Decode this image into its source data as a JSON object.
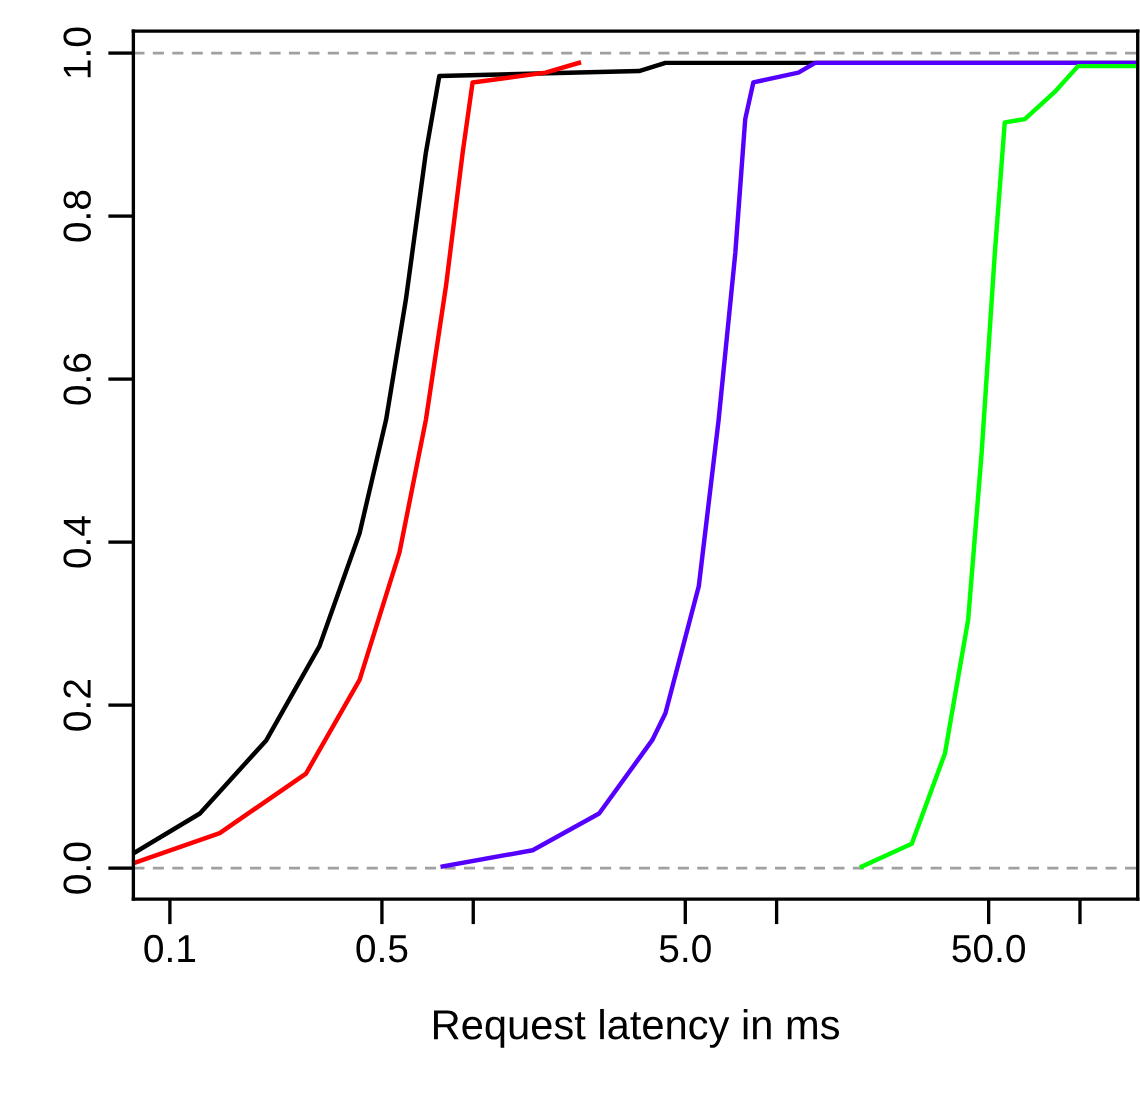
{
  "chart_data": {
    "type": "line",
    "xlabel": "Request latency in ms",
    "log": "x",
    "xlim": [
      0.0758,
      155
    ],
    "xticks": [
      0.1,
      0.5,
      {
        "value": 1,
        "label": null
      },
      {
        "value": 5,
        "label": "5.0"
      },
      {
        "value": 10,
        "label": null
      },
      {
        "value": 50,
        "label": "50.0"
      },
      {
        "value": 100,
        "label": null
      }
    ],
    "ylim": [
      -0.038,
      1.027
    ],
    "yticks": [
      {
        "value": 0,
        "label": "0.0"
      },
      0.2,
      0.4,
      0.6,
      0.8,
      {
        "value": 1,
        "label": "1.0"
      }
    ],
    "grid": false,
    "legend": false,
    "ref_lines": [
      {
        "axis": "y",
        "value": 0,
        "color": "#a0a0a0",
        "line_style": "dashed"
      },
      {
        "axis": "y",
        "value": 1,
        "color": "#a0a0a0",
        "line_style": "dashed"
      }
    ],
    "series": [
      {
        "color": "#000000",
        "x": [
          0.0758,
          0.1256,
          0.208,
          0.311,
          0.422,
          0.516,
          0.6,
          0.698,
          0.773,
          3.52,
          4.3,
          155
        ],
        "values": [
          0.018,
          0.067,
          0.157,
          0.272,
          0.411,
          0.55,
          0.698,
          0.878,
          0.972,
          0.978,
          0.988,
          0.988
        ]
      },
      {
        "color": "#ff0000",
        "x": [
          0.0758,
          0.146,
          0.281,
          0.422,
          0.571,
          0.698,
          0.813,
          0.923,
          0.995,
          1.73,
          2.23
        ],
        "values": [
          0.006,
          0.043,
          0.116,
          0.231,
          0.387,
          0.55,
          0.714,
          0.878,
          0.964,
          0.976,
          0.988
        ]
      },
      {
        "color": "#5500ff",
        "x": [
          0.793,
          1.57,
          2.6,
          3.89,
          4.3,
          5.54,
          6.44,
          7.31,
          7.88,
          8.38,
          11.8,
          13.4,
          155
        ],
        "values": [
          0.002,
          0.022,
          0.067,
          0.157,
          0.19,
          0.346,
          0.55,
          0.755,
          0.919,
          0.964,
          0.976,
          0.988,
          0.988
        ]
      },
      {
        "color": "#00ff00",
        "x": [
          19.1,
          27.9,
          35.9,
          42.8,
          47.4,
          52.4,
          56.5,
          65.8,
          82.4,
          98.5,
          155
        ],
        "values": [
          0.002,
          0.03,
          0.141,
          0.305,
          0.509,
          0.755,
          0.915,
          0.919,
          0.952,
          0.984,
          0.984
        ]
      }
    ]
  }
}
